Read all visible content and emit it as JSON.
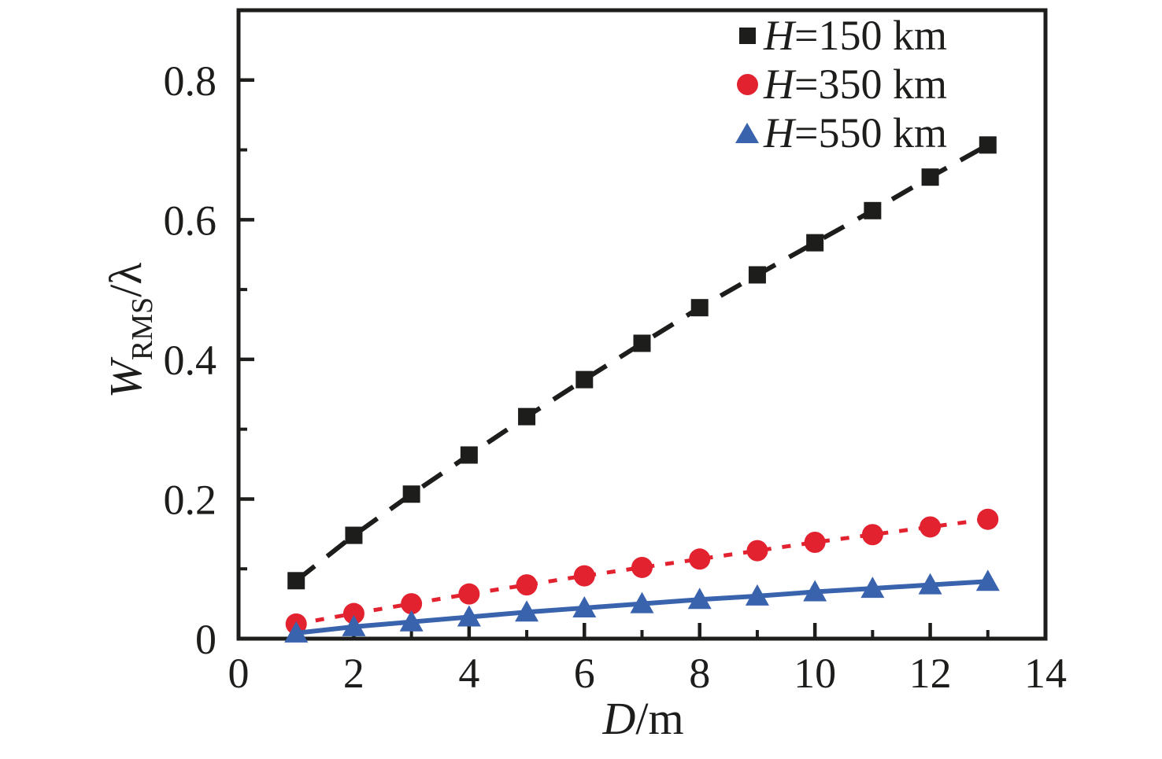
{
  "chart_data": {
    "type": "line",
    "xlabel": "D/m",
    "ylabel": "W_RMS/lambda",
    "xlabel_parts": {
      "main": "D",
      "rest": "/m"
    },
    "ylabel_parts": {
      "main": "W",
      "sub": "RMS",
      "rest": "/λ"
    },
    "xlim": [
      0,
      14
    ],
    "ylim": [
      0,
      0.9
    ],
    "grid": false,
    "legend_position": "top-right-inside",
    "ink_color": "#1d1d1b",
    "x": [
      1,
      2,
      3,
      4,
      5,
      6,
      7,
      8,
      9,
      10,
      11,
      12,
      13
    ],
    "series": [
      {
        "name": "H=150 km",
        "label_h": "H",
        "label_rest": "=150 km",
        "color": "#1d1d1b",
        "marker": "square",
        "line_style": "long-dash",
        "values": [
          0.083,
          0.148,
          0.207,
          0.263,
          0.318,
          0.371,
          0.423,
          0.474,
          0.521,
          0.567,
          0.613,
          0.661,
          0.707
        ]
      },
      {
        "name": "H=350 km",
        "label_h": "H",
        "label_rest": "=350 km",
        "color": "#e32230",
        "marker": "circle",
        "line_style": "short-dash",
        "values": [
          0.021,
          0.036,
          0.05,
          0.064,
          0.077,
          0.09,
          0.102,
          0.114,
          0.126,
          0.138,
          0.149,
          0.16,
          0.171
        ]
      },
      {
        "name": "H=550 km",
        "label_h": "H",
        "label_rest": "=550 km",
        "color": "#3a63ae",
        "marker": "triangle-up",
        "line_style": "solid",
        "values": [
          0.008,
          0.017,
          0.024,
          0.031,
          0.038,
          0.044,
          0.05,
          0.056,
          0.061,
          0.067,
          0.072,
          0.077,
          0.082
        ]
      }
    ],
    "x_ticks": {
      "major_values": [
        0,
        2,
        4,
        6,
        8,
        10,
        12,
        14
      ],
      "major_labels": [
        "0",
        "2",
        "4",
        "6",
        "8",
        "10",
        "12",
        "14"
      ],
      "minor_values": [
        1,
        3,
        5,
        7,
        9,
        11,
        13
      ]
    },
    "y_ticks": {
      "major_values": [
        0,
        0.2,
        0.4,
        0.6,
        0.8
      ],
      "major_labels": [
        "0",
        "0.2",
        "0.4",
        "0.6",
        "0.8"
      ],
      "minor_values": [
        0.1,
        0.3,
        0.5,
        0.7
      ]
    }
  }
}
